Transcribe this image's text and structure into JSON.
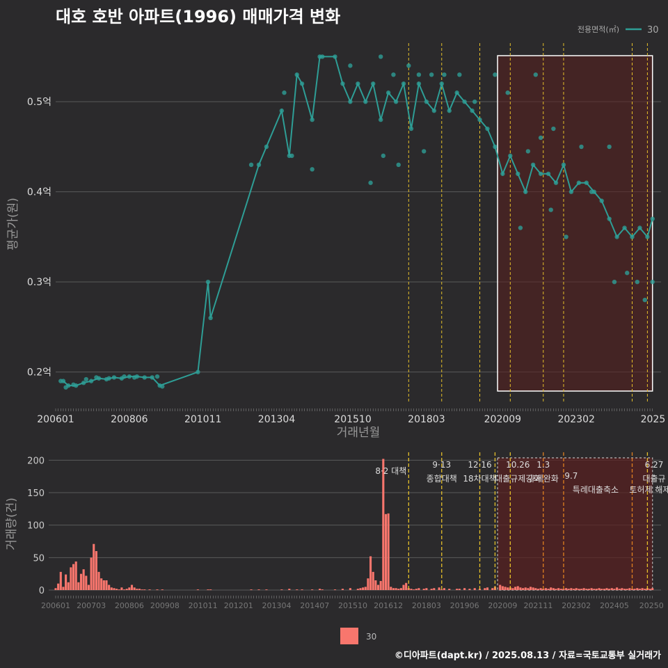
{
  "title": "대호 호반 아파트(1996) 매매가격 변화",
  "credit": "©디아파트(dapt.kr) / 2025.08.13 / 자료=국토교통부 실거래가",
  "colors": {
    "price": "#2e9e96",
    "volume": "#f8766d",
    "policy_tight": "#e6c02a",
    "policy_ease": "#e08020",
    "highlight_fill": "#5a1f1f",
    "grid": "#5a5a5a"
  },
  "chart_data": [
    {
      "type": "line",
      "chart": "price",
      "xlabel": "거래년월",
      "ylabel": "평균가(원)",
      "x_tick_labels": [
        "200601",
        "200806",
        "201011",
        "201304",
        "201510",
        "201803",
        "202009",
        "202302",
        "2025"
      ],
      "y_ticks": [
        {
          "value": 0.2,
          "label": "0.2억"
        },
        {
          "value": 0.3,
          "label": "0.3억"
        },
        {
          "value": 0.4,
          "label": "0.4억"
        },
        {
          "value": 0.5,
          "label": "0.5억"
        }
      ],
      "ylim": [
        0.165,
        0.565
      ],
      "legend_title": "전용면적(㎡)",
      "legend": [
        "30"
      ],
      "highlight": {
        "from": "2020.07",
        "to": "2025.08"
      },
      "policy_lines": [
        "2017.08",
        "2018.09",
        "2019.12",
        "2020.12",
        "2022.01",
        "2022.09",
        "2024.12",
        "2025.06"
      ],
      "series": [
        {
          "name": "30",
          "points": [
            [
              "2006.04",
              0.19
            ],
            [
              "2006.06",
              0.185
            ],
            [
              "2006.09",
              0.185
            ],
            [
              "2006.12",
              0.188
            ],
            [
              "2007.03",
              0.19
            ],
            [
              "2007.06",
              0.193
            ],
            [
              "2007.09",
              0.192
            ],
            [
              "2007.12",
              0.194
            ],
            [
              "2008.03",
              0.193
            ],
            [
              "2008.06",
              0.195
            ],
            [
              "2008.09",
              0.195
            ],
            [
              "2008.12",
              0.194
            ],
            [
              "2009.03",
              0.194
            ],
            [
              "2009.06",
              0.185
            ],
            [
              "2010.09",
              0.2
            ],
            [
              "2011.01",
              0.3
            ],
            [
              "2011.02",
              0.26
            ],
            [
              "2012.09",
              0.43
            ],
            [
              "2012.12",
              0.45
            ],
            [
              "2013.06",
              0.49
            ],
            [
              "2013.09",
              0.44
            ],
            [
              "2013.12",
              0.53
            ],
            [
              "2014.02",
              0.52
            ],
            [
              "2014.06",
              0.48
            ],
            [
              "2014.09",
              0.55
            ],
            [
              "2015.03",
              0.55
            ],
            [
              "2015.06",
              0.52
            ],
            [
              "2015.09",
              0.5
            ],
            [
              "2015.12",
              0.52
            ],
            [
              "2016.03",
              0.5
            ],
            [
              "2016.06",
              0.52
            ],
            [
              "2016.09",
              0.48
            ],
            [
              "2016.12",
              0.51
            ],
            [
              "2017.03",
              0.5
            ],
            [
              "2017.06",
              0.52
            ],
            [
              "2017.09",
              0.47
            ],
            [
              "2017.12",
              0.52
            ],
            [
              "2018.03",
              0.5
            ],
            [
              "2018.06",
              0.49
            ],
            [
              "2018.09",
              0.52
            ],
            [
              "2018.12",
              0.49
            ],
            [
              "2019.03",
              0.51
            ],
            [
              "2019.06",
              0.5
            ],
            [
              "2019.09",
              0.49
            ],
            [
              "2019.12",
              0.48
            ],
            [
              "2020.03",
              0.47
            ],
            [
              "2020.06",
              0.45
            ],
            [
              "2020.09",
              0.42
            ],
            [
              "2020.12",
              0.44
            ],
            [
              "2021.03",
              0.42
            ],
            [
              "2021.06",
              0.4
            ],
            [
              "2021.09",
              0.43
            ],
            [
              "2021.12",
              0.42
            ],
            [
              "2022.03",
              0.42
            ],
            [
              "2022.06",
              0.41
            ],
            [
              "2022.09",
              0.43
            ],
            [
              "2022.12",
              0.4
            ],
            [
              "2023.03",
              0.41
            ],
            [
              "2023.06",
              0.41
            ],
            [
              "2023.09",
              0.4
            ],
            [
              "2023.12",
              0.39
            ],
            [
              "2024.03",
              0.37
            ],
            [
              "2024.06",
              0.35
            ],
            [
              "2024.09",
              0.36
            ],
            [
              "2024.12",
              0.35
            ],
            [
              "2025.03",
              0.36
            ],
            [
              "2025.06",
              0.35
            ],
            [
              "2025.08",
              0.37
            ]
          ]
        }
      ],
      "scatter": [
        [
          "2006.03",
          0.19
        ],
        [
          "2006.05",
          0.183
        ],
        [
          "2006.08",
          0.186
        ],
        [
          "2007.01",
          0.192
        ],
        [
          "2007.05",
          0.194
        ],
        [
          "2007.10",
          0.193
        ],
        [
          "2008.04",
          0.195
        ],
        [
          "2008.08",
          0.194
        ],
        [
          "2009.05",
          0.195
        ],
        [
          "2009.07",
          0.184
        ],
        [
          "2012.06",
          0.43
        ],
        [
          "2013.10",
          0.44
        ],
        [
          "2013.07",
          0.51
        ],
        [
          "2014.06",
          0.425
        ],
        [
          "2014.10",
          0.55
        ],
        [
          "2015.09",
          0.54
        ],
        [
          "2016.05",
          0.41
        ],
        [
          "2016.09",
          0.55
        ],
        [
          "2016.10",
          0.44
        ],
        [
          "2017.02",
          0.53
        ],
        [
          "2017.04",
          0.43
        ],
        [
          "2017.08",
          0.54
        ],
        [
          "2017.12",
          0.53
        ],
        [
          "2018.02",
          0.445
        ],
        [
          "2018.05",
          0.53
        ],
        [
          "2018.10",
          0.53
        ],
        [
          "2019.04",
          0.53
        ],
        [
          "2019.10",
          0.5
        ],
        [
          "2020.06",
          0.53
        ],
        [
          "2021.04",
          0.36
        ],
        [
          "2021.10",
          0.53
        ],
        [
          "2021.12",
          0.46
        ],
        [
          "2022.04",
          0.38
        ],
        [
          "2022.05",
          0.47
        ],
        [
          "2022.10",
          0.35
        ],
        [
          "2023.04",
          0.45
        ],
        [
          "2024.03",
          0.45
        ],
        [
          "2024.05",
          0.3
        ],
        [
          "2024.10",
          0.31
        ],
        [
          "2025.02",
          0.3
        ],
        [
          "2025.05",
          0.28
        ],
        [
          "2025.08",
          0.3
        ],
        [
          "2020.11",
          0.51
        ],
        [
          "2021.07",
          0.445
        ],
        [
          "2023.08",
          0.4
        ]
      ]
    },
    {
      "type": "bar",
      "chart": "volume",
      "ylabel": "거래량(건)",
      "x_tick_labels": [
        "200601",
        "200703",
        "200806",
        "200908",
        "201011",
        "201201",
        "201304",
        "201407",
        "201510",
        "201612",
        "201803",
        "201906",
        "202009",
        "202111",
        "202302",
        "202405",
        "20250"
      ],
      "y_ticks": [
        0,
        50,
        100,
        150,
        200
      ],
      "ylim": [
        0,
        210
      ],
      "legend": [
        "30"
      ],
      "highlight": {
        "from": "2020.07",
        "to": "2025.08"
      },
      "policy_lines": [
        {
          "x": "2017.08",
          "date": "8·2",
          "label": "대책",
          "kind": "tight"
        },
        {
          "x": "2018.09",
          "date": "9·13",
          "label": "종합대책",
          "kind": "tight"
        },
        {
          "x": "2019.12",
          "date": "12·16",
          "label": "18차대책",
          "kind": "tight"
        },
        {
          "x": "2020.06",
          "date": "",
          "label": "",
          "kind": "tight"
        },
        {
          "x": "2020.12",
          "date": "10.26",
          "label": "대출규제강화",
          "kind": "tight"
        },
        {
          "x": "2022.01",
          "date": "1.3",
          "label": "규제완화",
          "kind": "ease"
        },
        {
          "x": "2022.09",
          "date": "9.7",
          "label": "특례대출축소",
          "kind": "ease"
        },
        {
          "x": "2024.12",
          "date": "",
          "label": "토허제 해제",
          "kind": "ease"
        },
        {
          "x": "2025.06",
          "date": "6.27",
          "label": "대출규",
          "kind": "tight"
        }
      ],
      "bars": {
        "2006.01": 3,
        "2006.02": 10,
        "2006.03": 28,
        "2006.04": 5,
        "2006.05": 24,
        "2006.06": 12,
        "2006.07": 35,
        "2006.08": 40,
        "2006.09": 44,
        "2006.10": 12,
        "2006.11": 25,
        "2006.12": 32,
        "2007.01": 22,
        "2007.02": 8,
        "2007.03": 50,
        "2007.04": 71,
        "2007.05": 60,
        "2007.06": 28,
        "2007.07": 18,
        "2007.08": 15,
        "2007.09": 15,
        "2007.10": 8,
        "2007.11": 4,
        "2007.12": 3,
        "2008.01": 2,
        "2008.02": 1,
        "2008.03": 4,
        "2008.04": 1,
        "2008.05": 2,
        "2008.06": 4,
        "2008.07": 8,
        "2008.08": 4,
        "2008.09": 2,
        "2008.10": 2,
        "2008.11": 1,
        "2008.12": 1,
        "2009.02": 1,
        "2009.05": 1,
        "2009.07": 1,
        "2010.09": 1,
        "2011.01": 1,
        "2011.02": 1,
        "2012.06": 1,
        "2012.09": 1,
        "2012.12": 1,
        "2013.06": 1,
        "2013.09": 2,
        "2013.12": 1,
        "2014.02": 1,
        "2014.06": 1,
        "2014.09": 2,
        "2014.10": 1,
        "2015.03": 1,
        "2015.06": 2,
        "2015.09": 3,
        "2015.12": 2,
        "2016.01": 3,
        "2016.02": 4,
        "2016.03": 5,
        "2016.04": 18,
        "2016.05": 52,
        "2016.06": 28,
        "2016.07": 15,
        "2016.08": 8,
        "2016.09": 14,
        "2016.10": 202,
        "2016.11": 117,
        "2016.12": 118,
        "2017.01": 5,
        "2017.02": 3,
        "2017.03": 3,
        "2017.04": 2,
        "2017.05": 3,
        "2017.06": 8,
        "2017.07": 11,
        "2017.08": 3,
        "2017.09": 2,
        "2017.10": 1,
        "2017.11": 2,
        "2017.12": 3,
        "2018.02": 2,
        "2018.03": 3,
        "2018.05": 2,
        "2018.06": 3,
        "2018.08": 4,
        "2018.09": 1,
        "2018.10": 3,
        "2018.12": 2,
        "2019.03": 2,
        "2019.04": 2,
        "2019.06": 3,
        "2019.08": 2,
        "2019.10": 3,
        "2019.12": 2,
        "2020.02": 3,
        "2020.03": 4,
        "2020.05": 3,
        "2020.06": 5,
        "2020.08": 8,
        "2020.09": 6,
        "2020.10": 5,
        "2020.11": 4,
        "2020.12": 4,
        "2021.01": 3,
        "2021.02": 5,
        "2021.03": 6,
        "2021.04": 4,
        "2021.05": 3,
        "2021.06": 4,
        "2021.07": 3,
        "2021.08": 5,
        "2021.09": 4,
        "2021.10": 3,
        "2021.11": 2,
        "2021.12": 3,
        "2022.01": 2,
        "2022.02": 3,
        "2022.03": 2,
        "2022.04": 4,
        "2022.05": 3,
        "2022.06": 2,
        "2022.07": 3,
        "2022.08": 2,
        "2022.09": 2,
        "2022.10": 3,
        "2022.11": 2,
        "2022.12": 3,
        "2023.01": 2,
        "2023.02": 3,
        "2023.03": 2,
        "2023.04": 2,
        "2023.05": 3,
        "2023.06": 2,
        "2023.07": 2,
        "2023.08": 3,
        "2023.09": 2,
        "2023.10": 2,
        "2023.11": 3,
        "2023.12": 2,
        "2024.01": 2,
        "2024.02": 3,
        "2024.03": 2,
        "2024.04": 3,
        "2024.05": 2,
        "2024.06": 4,
        "2024.07": 2,
        "2024.08": 3,
        "2024.09": 2,
        "2024.10": 2,
        "2024.11": 3,
        "2024.12": 2,
        "2025.01": 2,
        "2025.02": 3,
        "2025.03": 2,
        "2025.04": 3,
        "2025.05": 2,
        "2025.06": 3,
        "2025.07": 2,
        "2025.08": 3
      }
    }
  ]
}
